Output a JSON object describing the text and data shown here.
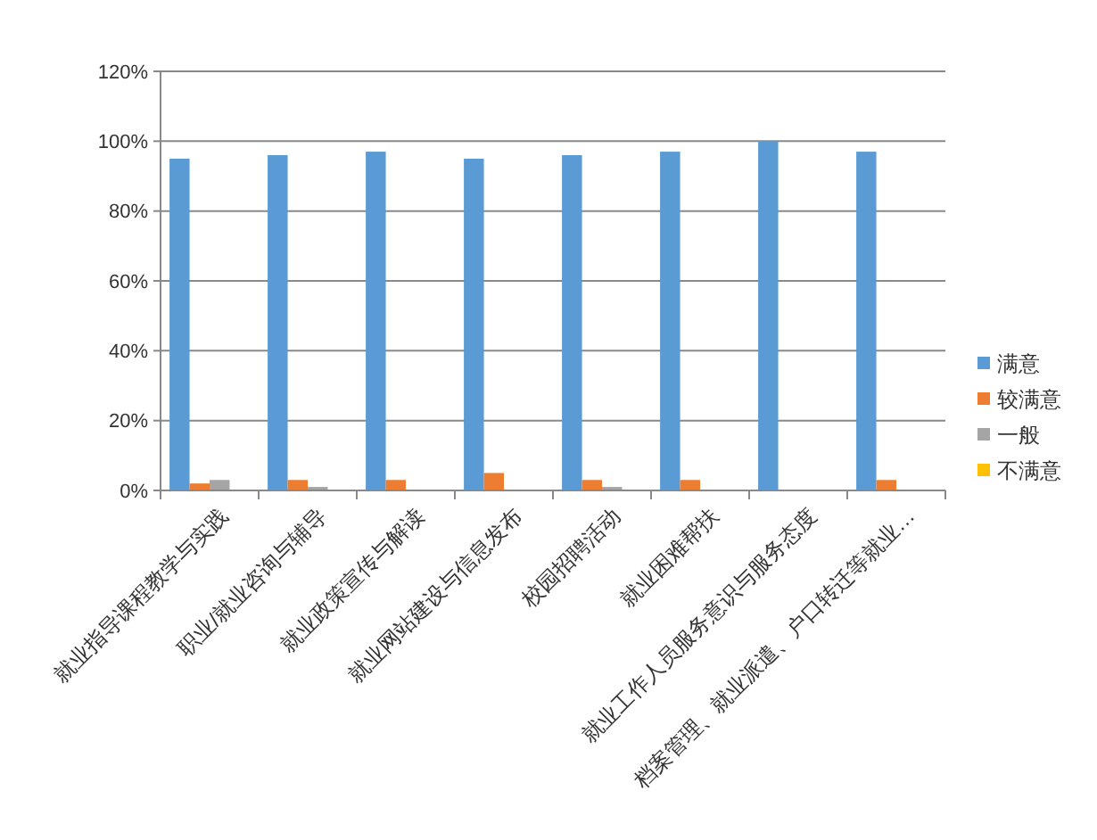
{
  "chart_data": {
    "type": "bar",
    "categories": [
      "就业指导课程教学与实践",
      "职业/就业咨询与辅导",
      "就业政策宣传与解读",
      "就业网站建设与信息发布",
      "校园招聘活动",
      "就业困难帮扶",
      "就业工作人员服务意识与服务态度",
      "档案管理、就业派遣、户口转迁等就业…"
    ],
    "series": [
      {
        "name": "满意",
        "color": "#5b9bd5",
        "values": [
          95,
          96,
          97,
          95,
          96,
          97,
          100,
          97
        ]
      },
      {
        "name": "较满意",
        "color": "#ed7d31",
        "values": [
          2,
          3,
          3,
          5,
          3,
          3,
          0,
          3
        ]
      },
      {
        "name": "一般",
        "color": "#a5a5a5",
        "values": [
          3,
          1,
          0,
          0,
          1,
          0,
          0,
          0
        ]
      },
      {
        "name": "不满意",
        "color": "#ffc000",
        "values": [
          0,
          0,
          0,
          0,
          0,
          0,
          0,
          0
        ]
      }
    ],
    "ylim": [
      0,
      120
    ],
    "yticks": [
      {
        "value": 0,
        "label": "0%"
      },
      {
        "value": 20,
        "label": "20%"
      },
      {
        "value": 40,
        "label": "40%"
      },
      {
        "value": 60,
        "label": "60%"
      },
      {
        "value": 80,
        "label": "80%"
      },
      {
        "value": 100,
        "label": "100%"
      },
      {
        "value": 120,
        "label": "120%"
      }
    ],
    "grid": "y",
    "legend": "right"
  }
}
